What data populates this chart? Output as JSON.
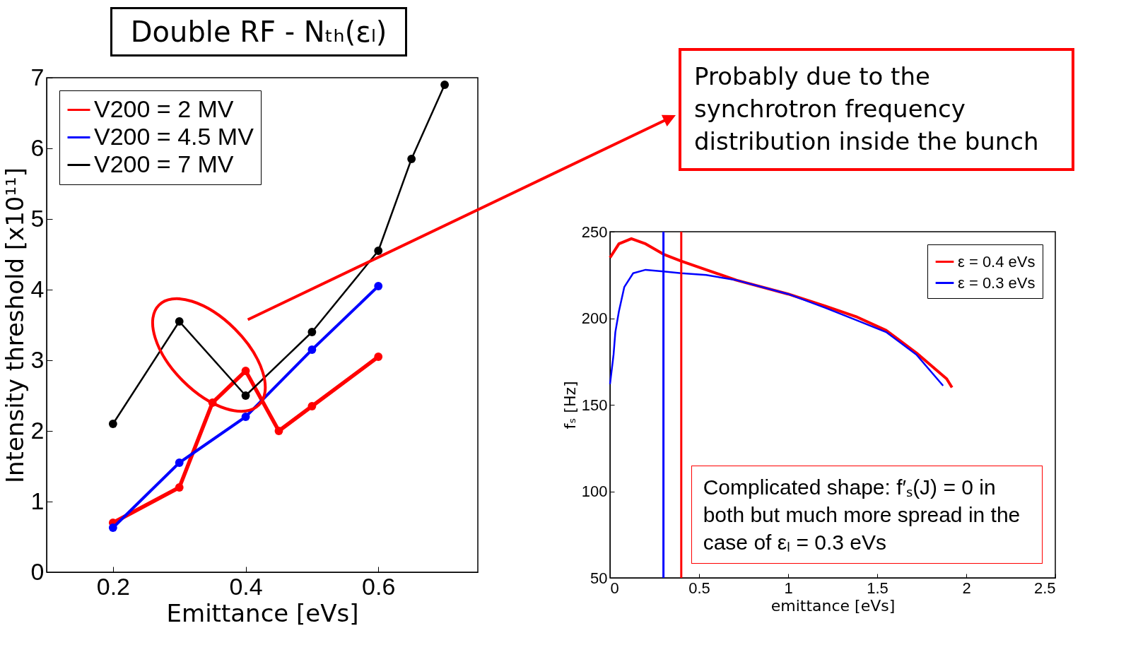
{
  "chart_data": [
    {
      "type": "line",
      "title": "Double RF - Nₜₕ(εₗ)",
      "xlabel": "Emittance [eVs]",
      "ylabel": "Intensity threshold [x10¹¹]",
      "xlim": [
        0.1,
        0.75
      ],
      "xticks": [
        0.2,
        0.4,
        0.6
      ],
      "ylim": [
        0,
        7
      ],
      "yticks": [
        0,
        1,
        2,
        3,
        4,
        5,
        6,
        7
      ],
      "legend": "top left",
      "marker": "circle",
      "annotations": [
        "Probably due to the synchrotron frequency distribution inside the bunch"
      ],
      "series": [
        {
          "name": "V200 = 2 MV",
          "color": "#ff0000",
          "x": [
            0.2,
            0.3,
            0.35,
            0.4,
            0.45,
            0.5,
            0.6
          ],
          "values": [
            0.7,
            1.2,
            2.4,
            2.85,
            2.0,
            2.35,
            3.05
          ]
        },
        {
          "name": "V200 = 4.5 MV",
          "color": "#0000ff",
          "x": [
            0.2,
            0.3,
            0.4,
            0.5,
            0.6
          ],
          "values": [
            0.63,
            1.55,
            2.2,
            3.15,
            4.05
          ]
        },
        {
          "name": "V200 = 7 MV",
          "color": "#000000",
          "x": [
            0.2,
            0.3,
            0.4,
            0.5,
            0.6,
            0.65,
            0.7
          ],
          "values": [
            2.1,
            3.55,
            2.5,
            3.4,
            4.55,
            5.85,
            6.9
          ]
        }
      ]
    },
    {
      "type": "line",
      "xlabel": "emittance [eVs]",
      "ylabel": "fₛ [Hz]",
      "xlim": [
        0,
        2.5
      ],
      "xticks": [
        0,
        0.5,
        1,
        1.5,
        2,
        2.5
      ],
      "ylim": [
        50,
        250
      ],
      "yticks": [
        50,
        100,
        150,
        200,
        250
      ],
      "legend": "top right",
      "annotations": [
        "Complicated shape: f′ₛ(J) = 0 in both but much more spread in the case of εₗ = 0.3 eVs"
      ],
      "ref_lines": [
        {
          "axis": "x",
          "value": 0.3,
          "color": "#0000ff"
        },
        {
          "axis": "x",
          "value": 0.4,
          "color": "#ff0000"
        }
      ],
      "series": [
        {
          "name": "ε = 0.4 eVs",
          "color": "#ff0000",
          "x": [
            0,
            0.05,
            0.12,
            0.2,
            0.3,
            0.4,
            0.54,
            0.71,
            1.0,
            1.21,
            1.38,
            1.55,
            1.72,
            1.89,
            1.92
          ],
          "values": [
            235,
            243,
            246,
            243,
            237,
            233,
            228,
            222,
            214,
            207,
            201,
            193,
            180,
            165,
            160
          ]
        },
        {
          "name": "ε = 0.3 eVs",
          "color": "#0000ff",
          "x": [
            0,
            0.02,
            0.03,
            0.05,
            0.08,
            0.13,
            0.2,
            0.3,
            0.4,
            0.54,
            0.71,
            1.0,
            1.21,
            1.38,
            1.55,
            1.72,
            1.87
          ],
          "values": [
            162,
            179,
            192,
            204,
            218,
            226,
            228,
            227,
            226,
            225,
            222,
            214,
            206,
            199,
            192,
            179,
            161
          ]
        }
      ]
    }
  ]
}
